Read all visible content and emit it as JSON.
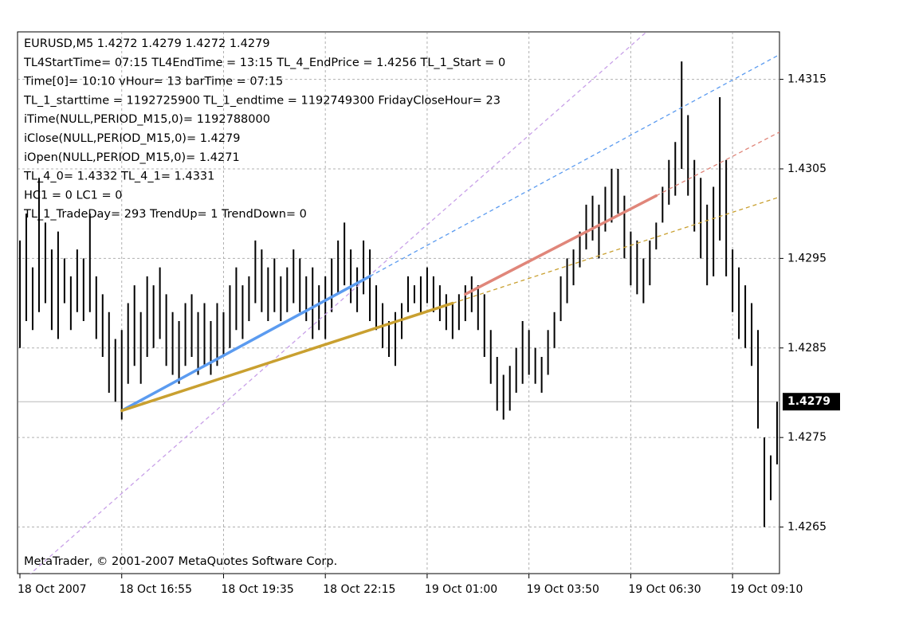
{
  "chart_data": {
    "type": "ohlc",
    "info_lines": [
      "EURUSD,M5  1.4272 1.4279 1.4272 1.4279",
      "TL4StartTime= 07:15 TL4EndTime = 13:15 TL_4_EndPrice = 1.4256 TL_1_Start = 0",
      "Time[0]= 10:10 vHour= 13 barTime = 07:15",
      "TL_1_starttime = 1192725900 TL_1_endtime = 1192749300 FridayCloseHour= 23",
      "iTime(NULL,PERIOD_M15,0)= 1192788000",
      "iClose(NULL,PERIOD_M15,0)= 1.4279",
      "iOpen(NULL,PERIOD_M15,0)= 1.4271",
      "TL_4_0= 1.4332 TL_4_1= 1.4331",
      "HC1 = 0 LC1 = 0",
      "TL_1_TradeDay= 293 TrendUp= 1 TrendDown= 0"
    ],
    "footer": "MetaTrader, © 2001-2007 MetaQuotes Software Corp.",
    "color": "#000000",
    "grid": true,
    "xlim": [
      0,
      119
    ],
    "xticks": [
      {
        "value": 0,
        "label": "18 Oct 2007"
      },
      {
        "value": 16,
        "label": "18 Oct 16:55"
      },
      {
        "value": 32,
        "label": "18 Oct 19:35"
      },
      {
        "value": 48,
        "label": "18 Oct 22:15"
      },
      {
        "value": 64,
        "label": "19 Oct 01:00"
      },
      {
        "value": 80,
        "label": "19 Oct 03:50"
      },
      {
        "value": 96,
        "label": "19 Oct 06:30"
      },
      {
        "value": 112,
        "label": "19 Oct 09:10"
      }
    ],
    "ylim": [
      1.42598,
      1.43203
    ],
    "yticks": [
      1.4265,
      1.4275,
      1.4285,
      1.4295,
      1.4305,
      1.4315
    ],
    "last_price": 1.4279,
    "high": [
      1.4297,
      1.43,
      1.4294,
      1.4304,
      1.4299,
      1.4296,
      1.4298,
      1.4295,
      1.4293,
      1.4296,
      1.4295,
      1.43,
      1.4293,
      1.4291,
      1.4289,
      1.4286,
      1.4287,
      1.429,
      1.4292,
      1.4289,
      1.4293,
      1.4292,
      1.4294,
      1.4291,
      1.4289,
      1.4288,
      1.429,
      1.4291,
      1.4289,
      1.429,
      1.4288,
      1.429,
      1.4289,
      1.4292,
      1.4294,
      1.4292,
      1.4293,
      1.4297,
      1.4296,
      1.4294,
      1.4295,
      1.4293,
      1.4294,
      1.4296,
      1.4295,
      1.4293,
      1.4294,
      1.4292,
      1.4293,
      1.4295,
      1.4297,
      1.4299,
      1.4296,
      1.4294,
      1.4297,
      1.4296,
      1.4292,
      1.429,
      1.4288,
      1.4289,
      1.429,
      1.4293,
      1.4292,
      1.4293,
      1.4294,
      1.4293,
      1.4292,
      1.4291,
      1.429,
      1.4291,
      1.4292,
      1.4293,
      1.4292,
      1.4291,
      1.4287,
      1.4284,
      1.4282,
      1.4283,
      1.4285,
      1.4288,
      1.4287,
      1.4285,
      1.4284,
      1.4287,
      1.4289,
      1.4293,
      1.4295,
      1.4296,
      1.4298,
      1.4301,
      1.4302,
      1.4301,
      1.4303,
      1.4305,
      1.4305,
      1.4302,
      1.4298,
      1.4297,
      1.4295,
      1.4297,
      1.4299,
      1.4303,
      1.4306,
      1.4308,
      1.4317,
      1.4311,
      1.4306,
      1.4304,
      1.4301,
      1.4303,
      1.4313,
      1.4306,
      1.4296,
      1.4294,
      1.4292,
      1.429,
      1.4287,
      1.4275,
      1.4273,
      1.4279
    ],
    "low": [
      1.4285,
      1.4288,
      1.4287,
      1.4289,
      1.429,
      1.4287,
      1.4286,
      1.429,
      1.4287,
      1.4289,
      1.4288,
      1.4289,
      1.4286,
      1.4284,
      1.428,
      1.4279,
      1.4277,
      1.4281,
      1.4283,
      1.4281,
      1.4284,
      1.4285,
      1.4286,
      1.4283,
      1.4282,
      1.4281,
      1.4283,
      1.4284,
      1.4282,
      1.4283,
      1.4282,
      1.4283,
      1.4284,
      1.4285,
      1.4287,
      1.4286,
      1.4288,
      1.429,
      1.4289,
      1.4288,
      1.4289,
      1.4288,
      1.4289,
      1.429,
      1.4289,
      1.4288,
      1.4286,
      1.4287,
      1.4286,
      1.4289,
      1.4291,
      1.4292,
      1.429,
      1.4289,
      1.4291,
      1.4288,
      1.4287,
      1.4285,
      1.4284,
      1.4283,
      1.4286,
      1.4289,
      1.429,
      1.4289,
      1.429,
      1.4289,
      1.4288,
      1.4287,
      1.4286,
      1.4287,
      1.4288,
      1.4289,
      1.4287,
      1.4284,
      1.4281,
      1.4278,
      1.4277,
      1.4278,
      1.428,
      1.4281,
      1.4282,
      1.4281,
      1.428,
      1.4282,
      1.4285,
      1.4288,
      1.429,
      1.4292,
      1.4294,
      1.4296,
      1.4297,
      1.4295,
      1.4298,
      1.4299,
      1.43,
      1.4295,
      1.4292,
      1.4291,
      1.429,
      1.4292,
      1.4296,
      1.4299,
      1.4301,
      1.4302,
      1.4305,
      1.4302,
      1.4298,
      1.4295,
      1.4292,
      1.4293,
      1.4297,
      1.4293,
      1.4289,
      1.4286,
      1.4285,
      1.4283,
      1.4276,
      1.4265,
      1.4268,
      1.4272
    ],
    "trend_lines": [
      {
        "color": "#c8a0e8",
        "style": "dashed",
        "x": [
          10,
          90
        ],
        "values": [
          1.4265,
          1.4315
        ],
        "extend": "both"
      },
      {
        "color": "#5b9bf0",
        "style": "solid",
        "x": [
          16,
          55
        ],
        "values": [
          1.4278,
          1.4293
        ],
        "extend": "right"
      },
      {
        "color": "#c9a030",
        "style": "solid",
        "x": [
          16,
          68
        ],
        "values": [
          1.4278,
          1.429
        ],
        "extend": "right"
      },
      {
        "color": "#e0867a",
        "style": "solid",
        "x": [
          70,
          100
        ],
        "values": [
          1.4291,
          1.4302
        ],
        "extend": "right"
      }
    ]
  }
}
